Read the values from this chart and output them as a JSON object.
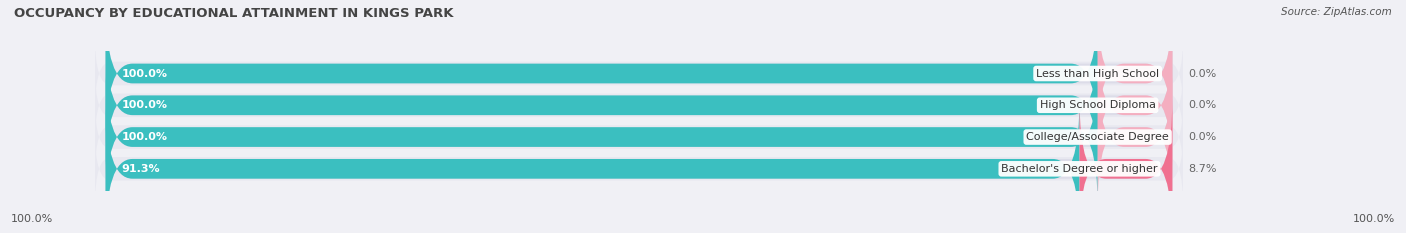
{
  "title": "OCCUPANCY BY EDUCATIONAL ATTAINMENT IN KINGS PARK",
  "source": "Source: ZipAtlas.com",
  "categories": [
    "Less than High School",
    "High School Diploma",
    "College/Associate Degree",
    "Bachelor's Degree or higher"
  ],
  "owner_values": [
    100.0,
    100.0,
    100.0,
    91.3
  ],
  "renter_values": [
    0.0,
    0.0,
    0.0,
    8.7
  ],
  "owner_color": "#3bbfc0",
  "renter_color": "#f07090",
  "renter_color_light": "#f4aec0",
  "bar_bg_color": "#dcdce8",
  "background_color": "#f0f0f5",
  "row_bg_color": "#e8e8f0",
  "title_color": "#444444",
  "label_color": "#555555",
  "value_label_color": "#666666",
  "bar_height": 0.62,
  "title_fontsize": 9.5,
  "legend_fontsize": 8,
  "bar_text_fontsize": 8,
  "category_fontsize": 8,
  "source_fontsize": 7.5,
  "renter_stub_pct": 7.0
}
